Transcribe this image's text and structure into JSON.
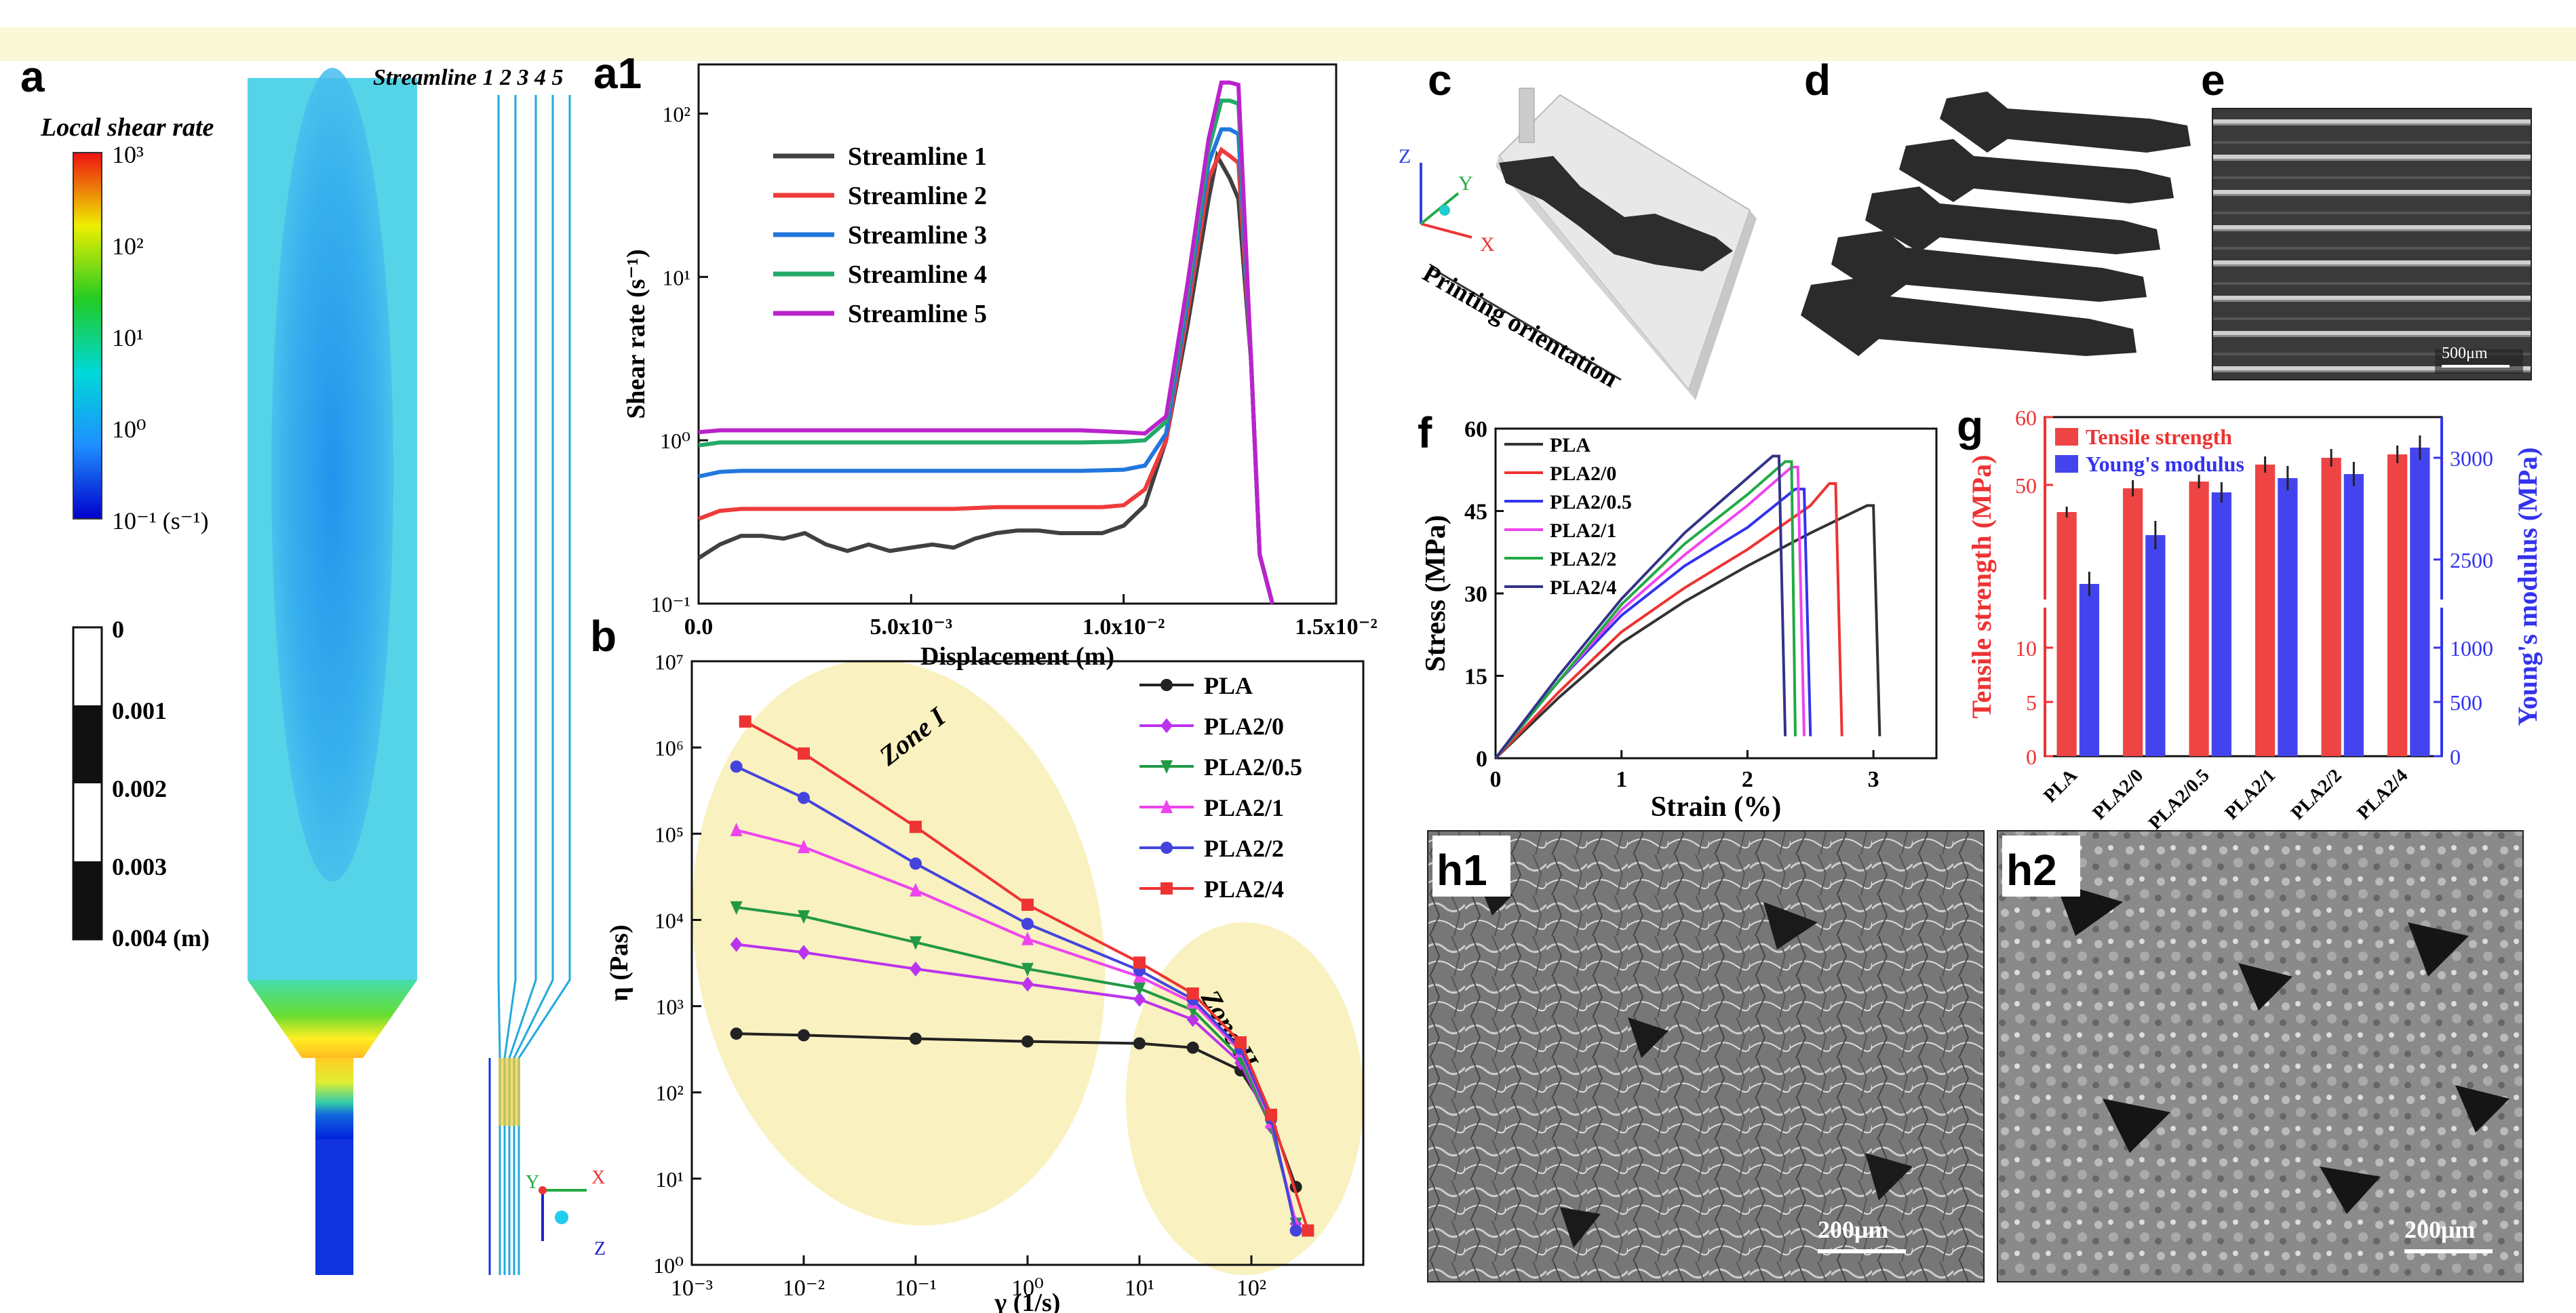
{
  "panel_labels": {
    "a": "a",
    "a1": "a1",
    "b": "b",
    "c": "c",
    "d": "d",
    "e": "e",
    "f": "f",
    "g": "g",
    "h1": "h1",
    "h2": "h2"
  },
  "panel_a": {
    "colorbar_title": "Local shear rate",
    "colorbar_ticks": [
      "10³",
      "10²",
      "10¹",
      "10⁰",
      "10⁻¹ (s⁻¹)"
    ],
    "scalebar_ticks": [
      "0",
      "0.001",
      "0.002",
      "0.003",
      "0.004 (m)"
    ],
    "streamline_header": "Streamline 1 2 3 4 5",
    "axis_triad": {
      "y": "Y",
      "x": "X",
      "z": "Z"
    }
  },
  "panel_c": {
    "printing_orientation": "Printing orientation",
    "axes": {
      "z": "Z",
      "y": "Y",
      "x": "X"
    }
  },
  "panel_e": {
    "scale_bar": "500μm"
  },
  "panel_h1": {
    "scale_bar": "200μm"
  },
  "panel_h2": {
    "scale_bar": "200μm"
  },
  "chart_data": [
    {
      "id": "a1",
      "type": "line",
      "title": "",
      "xlabel": "Displacement (m)",
      "ylabel": "Shear rate (s⁻¹)",
      "xlim": [
        0,
        0.015
      ],
      "ylim": [
        0.1,
        200
      ],
      "yscale": "log",
      "x_ticks": [
        {
          "v": 0,
          "label": "0.0"
        },
        {
          "v": 0.005,
          "label": "5.0x10⁻³"
        },
        {
          "v": 0.01,
          "label": "1.0x10⁻²"
        },
        {
          "v": 0.015,
          "label": "1.5x10⁻²"
        }
      ],
      "y_ticks": [
        {
          "v": 0.1,
          "label": "10⁻¹"
        },
        {
          "v": 1,
          "label": "10⁰"
        },
        {
          "v": 10,
          "label": "10¹"
        },
        {
          "v": 100,
          "label": "10²"
        }
      ],
      "legend_position": "top-left",
      "series": [
        {
          "name": "Streamline 1",
          "color": "#404040",
          "x": [
            0,
            0.0005,
            0.001,
            0.0015,
            0.002,
            0.0025,
            0.003,
            0.0035,
            0.004,
            0.0045,
            0.005,
            0.0055,
            0.006,
            0.0065,
            0.007,
            0.0075,
            0.008,
            0.0085,
            0.009,
            0.0095,
            0.01,
            0.0105,
            0.011,
            0.0115,
            0.012,
            0.0122,
            0.0125,
            0.0127,
            0.013,
            0.0132,
            0.0135
          ],
          "y": [
            0.19,
            0.23,
            0.26,
            0.26,
            0.25,
            0.27,
            0.23,
            0.21,
            0.23,
            0.21,
            0.22,
            0.23,
            0.22,
            0.25,
            0.27,
            0.28,
            0.28,
            0.27,
            0.27,
            0.27,
            0.3,
            0.4,
            1.0,
            5.0,
            30,
            55,
            40,
            30,
            3.0,
            0.2,
            0.1
          ]
        },
        {
          "name": "Streamline 2",
          "color": "#ee3b3b",
          "x": [
            0,
            0.0005,
            0.001,
            0.002,
            0.003,
            0.004,
            0.005,
            0.006,
            0.007,
            0.008,
            0.009,
            0.0095,
            0.01,
            0.0105,
            0.011,
            0.0115,
            0.012,
            0.0123,
            0.0125,
            0.0127,
            0.013,
            0.0132,
            0.0135
          ],
          "y": [
            0.33,
            0.37,
            0.38,
            0.38,
            0.38,
            0.38,
            0.38,
            0.38,
            0.39,
            0.39,
            0.39,
            0.39,
            0.4,
            0.5,
            1.0,
            6.0,
            40,
            60,
            55,
            50,
            3.0,
            0.2,
            0.1
          ]
        },
        {
          "name": "Streamline 3",
          "color": "#2277dd",
          "x": [
            0,
            0.0005,
            0.001,
            0.002,
            0.003,
            0.004,
            0.005,
            0.006,
            0.007,
            0.008,
            0.009,
            0.01,
            0.0105,
            0.011,
            0.0115,
            0.012,
            0.0123,
            0.0125,
            0.0127,
            0.013,
            0.0132,
            0.0135
          ],
          "y": [
            0.6,
            0.64,
            0.65,
            0.65,
            0.65,
            0.65,
            0.65,
            0.65,
            0.65,
            0.65,
            0.65,
            0.66,
            0.7,
            1.1,
            7.0,
            50,
            80,
            80,
            75,
            3.0,
            0.2,
            0.1
          ]
        },
        {
          "name": "Streamline 4",
          "color": "#22aa66",
          "x": [
            0,
            0.0005,
            0.001,
            0.002,
            0.003,
            0.004,
            0.005,
            0.006,
            0.007,
            0.008,
            0.009,
            0.01,
            0.0105,
            0.011,
            0.0115,
            0.012,
            0.0123,
            0.0125,
            0.0127,
            0.013,
            0.0132,
            0.0135
          ],
          "y": [
            0.93,
            0.97,
            0.97,
            0.97,
            0.97,
            0.97,
            0.97,
            0.97,
            0.97,
            0.97,
            0.97,
            0.98,
            1.0,
            1.3,
            8.0,
            60,
            120,
            120,
            115,
            3.0,
            0.2,
            0.1
          ]
        },
        {
          "name": "Streamline 5",
          "color": "#bb22cc",
          "x": [
            0,
            0.0005,
            0.001,
            0.002,
            0.003,
            0.004,
            0.005,
            0.006,
            0.007,
            0.008,
            0.009,
            0.01,
            0.0105,
            0.011,
            0.0115,
            0.012,
            0.0123,
            0.0125,
            0.0127,
            0.013,
            0.0132,
            0.0135
          ],
          "y": [
            1.12,
            1.15,
            1.15,
            1.15,
            1.15,
            1.15,
            1.15,
            1.15,
            1.15,
            1.15,
            1.15,
            1.12,
            1.1,
            1.4,
            9.0,
            70,
            155,
            155,
            150,
            3.0,
            0.2,
            0.1
          ]
        }
      ]
    },
    {
      "id": "b",
      "type": "line",
      "title": "",
      "xlabel": "γ (1/s)",
      "ylabel": "η (Pas)",
      "xscale": "log",
      "yscale": "log",
      "xlim": [
        0.001,
        1000
      ],
      "ylim": [
        1,
        10000000
      ],
      "x_ticks": [
        {
          "v": 0.001,
          "label": "10⁻³"
        },
        {
          "v": 0.01,
          "label": "10⁻²"
        },
        {
          "v": 0.1,
          "label": "10⁻¹"
        },
        {
          "v": 1,
          "label": "10⁰"
        },
        {
          "v": 10,
          "label": "10¹"
        },
        {
          "v": 100,
          "label": "10²"
        }
      ],
      "y_ticks": [
        {
          "v": 1,
          "label": "10⁰"
        },
        {
          "v": 10,
          "label": "10¹"
        },
        {
          "v": 100,
          "label": "10²"
        },
        {
          "v": 1000,
          "label": "10³"
        },
        {
          "v": 10000,
          "label": "10⁴"
        },
        {
          "v": 100000,
          "label": "10⁵"
        },
        {
          "v": 1000000,
          "label": "10⁶"
        },
        {
          "v": 10000000,
          "label": "10⁷"
        }
      ],
      "annotations": [
        "Zone I",
        "Zone II"
      ],
      "legend_position": "top-right",
      "series": [
        {
          "name": "PLA",
          "color": "#222222",
          "marker": "circle",
          "x": [
            0.0025,
            0.01,
            0.1,
            1,
            10,
            30,
            80,
            150,
            250
          ],
          "y": [
            480,
            460,
            420,
            390,
            370,
            330,
            180,
            50,
            8
          ]
        },
        {
          "name": "PLA2/0",
          "color": "#bb33ee",
          "marker": "diamond",
          "x": [
            0.0025,
            0.01,
            0.1,
            1,
            10,
            30,
            80,
            150,
            250
          ],
          "y": [
            5200,
            4200,
            2700,
            1800,
            1200,
            700,
            220,
            40,
            3
          ]
        },
        {
          "name": "PLA2/0.5",
          "color": "#229944",
          "marker": "tri-down",
          "x": [
            0.0025,
            0.01,
            0.1,
            1,
            10,
            30,
            80,
            150,
            250
          ],
          "y": [
            14000,
            11000,
            5500,
            2700,
            1600,
            900,
            250,
            40,
            3
          ]
        },
        {
          "name": "PLA2/1",
          "color": "#ee44ee",
          "marker": "tri-up",
          "x": [
            0.0025,
            0.01,
            0.1,
            1,
            10,
            30,
            80,
            150,
            250
          ],
          "y": [
            110000,
            70000,
            22000,
            6000,
            2200,
            1100,
            300,
            45,
            3
          ]
        },
        {
          "name": "PLA2/2",
          "color": "#4444dd",
          "marker": "circle",
          "x": [
            0.0025,
            0.01,
            0.1,
            1,
            10,
            30,
            80,
            150,
            250
          ],
          "y": [
            600000,
            260000,
            45000,
            9000,
            2600,
            1200,
            320,
            50,
            2.5
          ]
        },
        {
          "name": "PLA2/4",
          "color": "#ee3333",
          "marker": "square",
          "x": [
            0.003,
            0.01,
            0.1,
            1,
            10,
            30,
            80,
            150,
            320
          ],
          "y": [
            2000000,
            850000,
            120000,
            15000,
            3200,
            1400,
            380,
            55,
            2.5
          ]
        }
      ]
    },
    {
      "id": "f",
      "type": "line",
      "title": "",
      "xlabel": "Strain (%)",
      "ylabel": "Stress (MPa)",
      "xlim": [
        0,
        3.5
      ],
      "ylim": [
        0,
        60
      ],
      "x_ticks": [
        {
          "v": 0,
          "label": "0"
        },
        {
          "v": 1,
          "label": "1"
        },
        {
          "v": 2,
          "label": "2"
        },
        {
          "v": 3,
          "label": "3"
        }
      ],
      "y_ticks": [
        {
          "v": 0,
          "label": "0"
        },
        {
          "v": 15,
          "label": "15"
        },
        {
          "v": 30,
          "label": "30"
        },
        {
          "v": 45,
          "label": "45"
        },
        {
          "v": 60,
          "label": "60"
        }
      ],
      "legend_position": "top-left",
      "series": [
        {
          "name": "PLA",
          "color": "#333333",
          "x": [
            0,
            0.5,
            1,
            1.5,
            2,
            2.5,
            2.95,
            3.0,
            3.05
          ],
          "y": [
            0,
            11,
            21,
            28.5,
            35,
            41,
            46,
            46,
            4
          ]
        },
        {
          "name": "PLA2/0",
          "color": "#ee3333",
          "x": [
            0,
            0.5,
            1,
            1.5,
            2,
            2.5,
            2.65,
            2.7,
            2.75
          ],
          "y": [
            0,
            12,
            23,
            31,
            38,
            46,
            50,
            50,
            4
          ]
        },
        {
          "name": "PLA2/0.5",
          "color": "#3333ee",
          "x": [
            0,
            0.5,
            1,
            1.5,
            2,
            2.38,
            2.45,
            2.5
          ],
          "y": [
            0,
            14,
            26,
            35,
            42,
            49,
            49,
            4
          ]
        },
        {
          "name": "PLA2/1",
          "color": "#ee44ee",
          "x": [
            0,
            0.5,
            1,
            1.5,
            2,
            2.35,
            2.4,
            2.45
          ],
          "y": [
            0,
            14,
            27,
            37,
            46,
            53,
            53,
            4
          ]
        },
        {
          "name": "PLA2/2",
          "color": "#22aa44",
          "x": [
            0,
            0.5,
            1,
            1.5,
            2,
            2.3,
            2.35,
            2.38
          ],
          "y": [
            0,
            14,
            28,
            39,
            48,
            54,
            54,
            4
          ]
        },
        {
          "name": "PLA2/4",
          "color": "#333388",
          "x": [
            0,
            0.5,
            1,
            1.5,
            2,
            2.2,
            2.25,
            2.3
          ],
          "y": [
            0,
            15,
            29,
            41,
            51,
            55,
            55,
            4
          ]
        }
      ]
    },
    {
      "id": "g",
      "type": "bar",
      "title": "",
      "categories": [
        "PLA",
        "PLA2/0",
        "PLA2/0.5",
        "PLA2/1",
        "PLA2/2",
        "PLA2/4"
      ],
      "ylabel": "Tensile strength (MPa)",
      "y2label": "Young's modulus (MPa)",
      "ylim": [
        0,
        60
      ],
      "y2lim": [
        0,
        3250
      ],
      "y_ticks": [
        0,
        5,
        10,
        50,
        60
      ],
      "y2_ticks": [
        0,
        500,
        1000,
        2500,
        3000
      ],
      "axis_break": true,
      "legend_position": "top-left",
      "series": [
        {
          "name": "Tensile strength",
          "color": "#ee4444",
          "axis": "left",
          "values": [
            46,
            49.5,
            50.5,
            53,
            54,
            54.5
          ],
          "errors": [
            0.8,
            1.2,
            1.0,
            1.2,
            1.3,
            1.3
          ]
        },
        {
          "name": "Young's modulus",
          "color": "#4444ee",
          "axis": "right",
          "values": [
            2380,
            2620,
            2830,
            2900,
            2920,
            3050
          ],
          "errors": [
            60,
            70,
            50,
            60,
            60,
            60
          ]
        }
      ]
    }
  ]
}
